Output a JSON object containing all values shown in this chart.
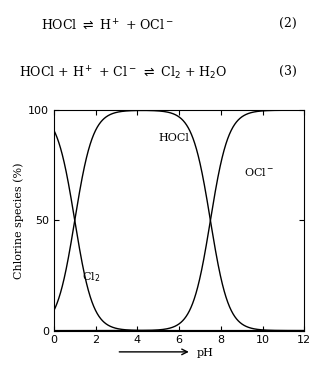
{
  "eq2_text": "HOCl $\\rightleftharpoons$ H$^+$ + OCl$^-$",
  "eq3_text": "HOCl + H$^+$ + Cl$^-$ $\\rightleftharpoons$ Cl$_2$ + H$_2$O",
  "eq2_num": "(2)",
  "eq3_num": "(3)",
  "ylabel": "Chlorine species (%)",
  "xlim": [
    0,
    12
  ],
  "ylim": [
    0,
    100
  ],
  "xticks": [
    0,
    2,
    4,
    6,
    8,
    10,
    12
  ],
  "yticks": [
    0,
    50,
    100
  ],
  "pKa_HOCl": 7.5,
  "pKa_Cl2": 1.0,
  "label_HOCl": "HOCl",
  "label_OCl": "OCl$^-$",
  "label_Cl2": "Cl$_2$",
  "line_color": "#000000",
  "bg_color": "#ffffff",
  "fontsize_eq": 9,
  "fontsize_label": 8,
  "fontsize_tick": 8,
  "fontsize_annot": 8
}
